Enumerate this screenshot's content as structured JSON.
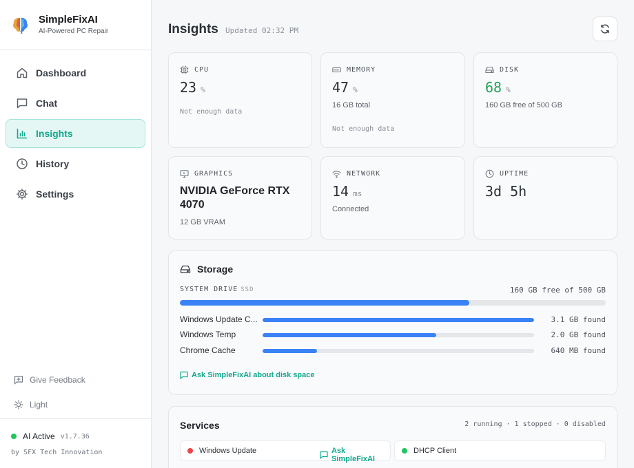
{
  "brand": {
    "name": "SimpleFixAI",
    "tagline": "AI-Powered PC Repair"
  },
  "nav": [
    {
      "label": "Dashboard",
      "icon": "home-icon",
      "active": false
    },
    {
      "label": "Chat",
      "icon": "chat-icon",
      "active": false
    },
    {
      "label": "Insights",
      "icon": "bar-chart-icon",
      "active": true
    },
    {
      "label": "History",
      "icon": "clock-icon",
      "active": false
    },
    {
      "label": "Settings",
      "icon": "gear-icon",
      "active": false
    }
  ],
  "sidebar_bottom": {
    "feedback_label": "Give Feedback",
    "theme_label": "Light"
  },
  "footer": {
    "status": "AI Active",
    "version": "v1.7.36",
    "credit": "by SFX Tech Innovation",
    "status_color": "#22c55e"
  },
  "header": {
    "title": "Insights",
    "updated": "Updated 02:32 PM"
  },
  "metrics": {
    "cpu": {
      "label": "CPU",
      "value": "23",
      "unit": "%",
      "note": "Not enough data"
    },
    "memory": {
      "label": "MEMORY",
      "value": "47",
      "unit": "%",
      "sub": "16 GB total",
      "note": "Not enough data"
    },
    "disk": {
      "label": "DISK",
      "value": "68",
      "unit": "%",
      "sub": "160 GB free of 500 GB",
      "value_color": "#22a35a"
    },
    "graphics": {
      "label": "GRAPHICS",
      "name": "NVIDIA GeForce RTX 4070",
      "sub": "12 GB VRAM"
    },
    "network": {
      "label": "NETWORK",
      "value": "14",
      "unit": "ms",
      "sub": "Connected"
    },
    "uptime": {
      "label": "UPTIME",
      "value": "3d 5h"
    }
  },
  "storage": {
    "title": "Storage",
    "drive_label": "SYSTEM DRIVE",
    "drive_type": "SSD",
    "drive_free": "160 GB free of 500 GB",
    "drive_used_fraction": 0.68,
    "items": [
      {
        "name": "Windows Update C...",
        "size": "3.1 GB found",
        "fraction": 1.0
      },
      {
        "name": "Windows Temp",
        "size": "2.0 GB found",
        "fraction": 0.64
      },
      {
        "name": "Chrome Cache",
        "size": "640 MB found",
        "fraction": 0.2
      }
    ],
    "ask_label": "Ask SimpleFixAI about disk space",
    "bar_color": "#3b82f6"
  },
  "services": {
    "title": "Services",
    "summary": "2 running · 1 stopped · 0 disabled",
    "items": [
      {
        "name": "Windows Update",
        "status_color": "#ef4444",
        "ask_label": "Ask SimpleFixAI"
      },
      {
        "name": "DHCP Client",
        "status_color": "#22c55e"
      }
    ]
  }
}
